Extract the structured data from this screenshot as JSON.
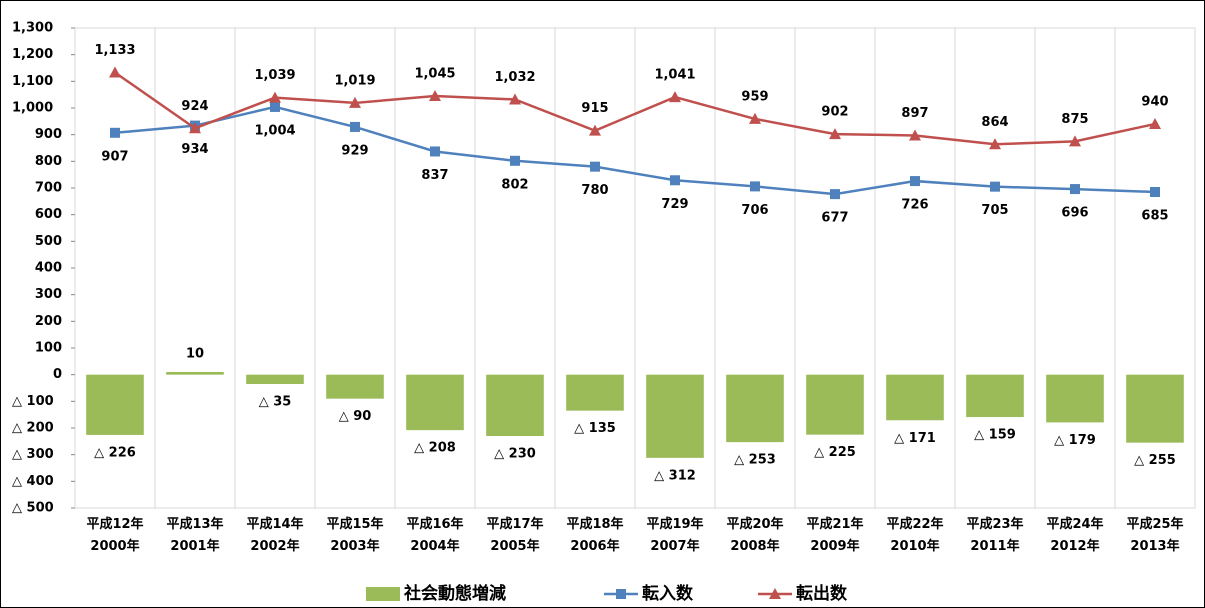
{
  "chart_data": {
    "type": "combo",
    "categories": [
      "平成12年\n2000年",
      "平成13年\n2001年",
      "平成14年\n2002年",
      "平成15年\n2003年",
      "平成16年\n2004年",
      "平成17年\n2005年",
      "平成18年\n2006年",
      "平成19年\n2007年",
      "平成20年\n2008年",
      "平成21年\n2009年",
      "平成22年\n2010年",
      "平成23年\n2011年",
      "平成24年\n2012年",
      "平成25年\n2013年"
    ],
    "series": [
      {
        "name": "社会動態増減",
        "type": "bar",
        "color": "#9bbb59",
        "values": [
          -226,
          10,
          -35,
          -90,
          -208,
          -230,
          -135,
          -312,
          -253,
          -225,
          -171,
          -159,
          -179,
          -255
        ],
        "value_labels": [
          "△ 226",
          "10",
          "△ 35",
          "△ 90",
          "△ 208",
          "△ 230",
          "△ 135",
          "△ 312",
          "△ 253",
          "△ 225",
          "△ 171",
          "△ 159",
          "△ 179",
          "△ 255"
        ]
      },
      {
        "name": "転入数",
        "type": "line",
        "marker": "square",
        "color": "#4f81bd",
        "values": [
          907,
          934,
          1004,
          929,
          837,
          802,
          780,
          729,
          706,
          677,
          726,
          705,
          696,
          685
        ],
        "value_labels": [
          "907",
          "934",
          "1,004",
          "929",
          "837",
          "802",
          "780",
          "729",
          "706",
          "677",
          "726",
          "705",
          "696",
          "685"
        ]
      },
      {
        "name": "転出数",
        "type": "line",
        "marker": "triangle",
        "color": "#c0504d",
        "values": [
          1133,
          924,
          1039,
          1019,
          1045,
          1032,
          915,
          1041,
          959,
          902,
          897,
          864,
          875,
          940
        ],
        "value_labels": [
          "1,133",
          "924",
          "1,039",
          "1,019",
          "1,045",
          "1,032",
          "915",
          "1,041",
          "959",
          "902",
          "897",
          "864",
          "875",
          "940"
        ]
      }
    ],
    "ylim": [
      -500,
      1300
    ],
    "yticks": [
      {
        "value": -500,
        "label": "△ 500"
      },
      {
        "value": -400,
        "label": "△ 400"
      },
      {
        "value": -300,
        "label": "△ 300"
      },
      {
        "value": -200,
        "label": "△ 200"
      },
      {
        "value": -100,
        "label": "△ 100"
      },
      0,
      100,
      200,
      300,
      400,
      500,
      600,
      700,
      800,
      900,
      {
        "value": 1000,
        "label": "1,000"
      },
      {
        "value": 1100,
        "label": "1,100"
      },
      {
        "value": 1200,
        "label": "1,200"
      },
      {
        "value": 1300,
        "label": "1,300"
      }
    ],
    "grid": true
  }
}
